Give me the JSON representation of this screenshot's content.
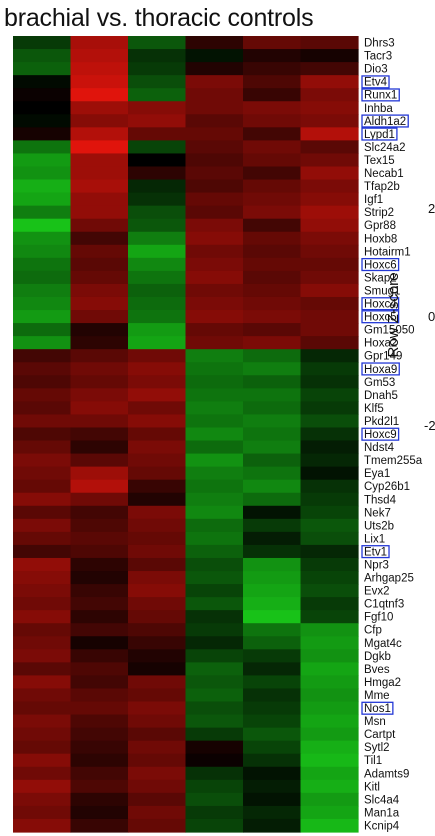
{
  "chart_data": {
    "type": "heatmap",
    "title": "brachial vs. thoracic controls",
    "color_scale_label": "Row Z-score",
    "color_scale_ticks": [
      "2",
      "0",
      "-2"
    ],
    "colors": {
      "high": "#e0140c",
      "mid": "#000000",
      "low": "#18c218",
      "box": "#2438d6"
    },
    "columns": 6,
    "genes": [
      {
        "name": "Dhrs3",
        "values": [
          -0.6,
          1.5,
          -0.9,
          0.4,
          0.9,
          0.8
        ]
      },
      {
        "name": "Tacr3",
        "values": [
          -0.9,
          1.6,
          -0.5,
          -0.2,
          0.3,
          0.2
        ]
      },
      {
        "name": "Dio3",
        "values": [
          -1.0,
          1.7,
          -0.6,
          0.3,
          0.5,
          0.6
        ]
      },
      {
        "name": "Etv4",
        "values": [
          -0.1,
          1.8,
          -0.8,
          1.1,
          0.7,
          1.3
        ]
      },
      {
        "name": "Runx1",
        "values": [
          0.1,
          2.0,
          -1.0,
          1.0,
          0.5,
          1.1
        ]
      },
      {
        "name": "Inhba",
        "values": [
          0.0,
          1.4,
          1.2,
          1.0,
          1.1,
          1.2
        ]
      },
      {
        "name": "Aldh1a2",
        "values": [
          -0.1,
          1.2,
          1.3,
          0.8,
          1.0,
          1.1
        ]
      },
      {
        "name": "Lypd1",
        "values": [
          0.2,
          1.6,
          0.9,
          0.9,
          0.6,
          1.6
        ]
      },
      {
        "name": "Slc24a2",
        "values": [
          -1.2,
          2.0,
          -0.7,
          0.8,
          1.0,
          0.8
        ]
      },
      {
        "name": "Tex15",
        "values": [
          -1.6,
          1.4,
          0.0,
          0.7,
          0.9,
          1.0
        ]
      },
      {
        "name": "Necab1",
        "values": [
          -1.5,
          1.4,
          0.4,
          0.8,
          0.6,
          1.3
        ]
      },
      {
        "name": "Tfap2b",
        "values": [
          -1.8,
          1.5,
          -0.4,
          0.7,
          0.9,
          1.1
        ]
      },
      {
        "name": "Igf1",
        "values": [
          -1.7,
          1.3,
          -0.5,
          0.9,
          1.0,
          1.2
        ]
      },
      {
        "name": "Strip2",
        "values": [
          -1.3,
          1.3,
          -0.8,
          0.8,
          1.1,
          1.4
        ]
      },
      {
        "name": "Gpr88",
        "values": [
          -2.0,
          1.0,
          -0.9,
          1.1,
          0.6,
          1.3
        ]
      },
      {
        "name": "Hoxb8",
        "values": [
          -1.5,
          0.6,
          -1.3,
          1.2,
          0.9,
          1.1
        ]
      },
      {
        "name": "Hotairm1",
        "values": [
          -1.4,
          0.9,
          -1.7,
          1.0,
          0.8,
          1.0
        ]
      },
      {
        "name": "Hoxc6",
        "values": [
          -1.2,
          0.8,
          -1.4,
          1.1,
          0.9,
          0.9
        ]
      },
      {
        "name": "Skap2",
        "values": [
          -1.1,
          0.9,
          -1.2,
          1.2,
          0.8,
          1.0
        ]
      },
      {
        "name": "Smug1",
        "values": [
          -1.3,
          1.1,
          -1.0,
          1.0,
          0.9,
          1.2
        ]
      },
      {
        "name": "Hoxc4",
        "values": [
          -1.4,
          1.2,
          -1.1,
          1.1,
          1.0,
          0.9
        ]
      },
      {
        "name": "Hoxc5",
        "values": [
          -1.6,
          1.0,
          -1.2,
          1.2,
          1.1,
          1.0
        ]
      },
      {
        "name": "Gm15050",
        "values": [
          -1.1,
          0.3,
          -1.6,
          0.9,
          0.8,
          1.0
        ]
      },
      {
        "name": "Hoxa2",
        "values": [
          -1.5,
          0.4,
          -1.7,
          1.0,
          1.1,
          0.8
        ]
      },
      {
        "name": "Gpr149",
        "values": [
          0.6,
          0.8,
          1.0,
          -1.3,
          -1.1,
          -0.4
        ]
      },
      {
        "name": "Hoxa9",
        "values": [
          0.8,
          1.0,
          1.2,
          -1.2,
          -1.3,
          -0.6
        ]
      },
      {
        "name": "Gm53",
        "values": [
          0.7,
          0.9,
          1.1,
          -1.1,
          -1.0,
          -0.5
        ]
      },
      {
        "name": "Dnah5",
        "values": [
          0.9,
          1.1,
          1.3,
          -1.2,
          -1.2,
          -0.7
        ]
      },
      {
        "name": "Klf5",
        "values": [
          0.8,
          1.2,
          1.0,
          -1.3,
          -1.1,
          -0.6
        ]
      },
      {
        "name": "Pkd2l1",
        "values": [
          1.0,
          1.0,
          1.2,
          -1.2,
          -1.3,
          -0.8
        ]
      },
      {
        "name": "Hoxc9",
        "values": [
          0.7,
          0.6,
          0.9,
          -1.4,
          -1.2,
          -0.5
        ]
      },
      {
        "name": "Ndst4",
        "values": [
          0.9,
          0.4,
          1.1,
          -1.1,
          -1.3,
          -0.3
        ]
      },
      {
        "name": "Tmem255a",
        "values": [
          1.1,
          0.8,
          1.0,
          -1.5,
          -1.0,
          -0.4
        ]
      },
      {
        "name": "Eya1",
        "values": [
          1.0,
          1.4,
          0.9,
          -1.3,
          -1.2,
          -0.2
        ]
      },
      {
        "name": "Cyp26b1",
        "values": [
          0.9,
          1.6,
          0.5,
          -1.2,
          -1.4,
          -0.5
        ]
      },
      {
        "name": "Thsd4",
        "values": [
          1.2,
          1.0,
          0.3,
          -1.3,
          -1.1,
          -0.6
        ]
      },
      {
        "name": "Nek7",
        "values": [
          0.8,
          0.6,
          1.1,
          -1.4,
          -0.2,
          -0.7
        ]
      },
      {
        "name": "Uts2b",
        "values": [
          1.1,
          0.7,
          1.0,
          -1.1,
          -0.6,
          -0.9
        ]
      },
      {
        "name": "Lix1",
        "values": [
          0.9,
          0.8,
          0.9,
          -1.2,
          -0.3,
          -0.8
        ]
      },
      {
        "name": "Etv1",
        "values": [
          0.6,
          0.7,
          1.0,
          -1.0,
          -0.5,
          -0.4
        ]
      },
      {
        "name": "Npr3",
        "values": [
          1.3,
          0.4,
          0.8,
          -0.8,
          -1.5,
          -0.6
        ]
      },
      {
        "name": "Arhgap25",
        "values": [
          1.2,
          0.3,
          1.1,
          -0.9,
          -1.6,
          -0.7
        ]
      },
      {
        "name": "Evx2",
        "values": [
          1.1,
          0.5,
          1.2,
          -0.7,
          -1.7,
          -0.8
        ]
      },
      {
        "name": "C1qtnf3",
        "values": [
          1.0,
          0.6,
          1.0,
          -0.9,
          -1.8,
          -0.6
        ]
      },
      {
        "name": "Fgf10",
        "values": [
          1.2,
          0.4,
          0.9,
          -0.5,
          -2.0,
          -0.7
        ]
      },
      {
        "name": "Cfp",
        "values": [
          0.9,
          0.6,
          0.7,
          -0.6,
          -1.2,
          -1.5
        ]
      },
      {
        "name": "Mgat4c",
        "values": [
          1.0,
          0.2,
          0.5,
          -0.4,
          -1.0,
          -1.6
        ]
      },
      {
        "name": "Dgkb",
        "values": [
          1.1,
          0.5,
          0.3,
          -0.7,
          -0.6,
          -1.5
        ]
      },
      {
        "name": "Bves",
        "values": [
          0.8,
          0.7,
          0.2,
          -1.0,
          -0.4,
          -1.7
        ]
      },
      {
        "name": "Hmga2",
        "values": [
          1.2,
          0.6,
          1.0,
          -0.9,
          -0.7,
          -1.6
        ]
      },
      {
        "name": "Mme",
        "values": [
          1.0,
          0.8,
          0.9,
          -1.0,
          -0.5,
          -1.5
        ]
      },
      {
        "name": "Nos1",
        "values": [
          0.9,
          0.9,
          1.1,
          -0.8,
          -0.6,
          -1.6
        ]
      },
      {
        "name": "Msn",
        "values": [
          1.1,
          0.7,
          1.0,
          -0.9,
          -0.7,
          -1.7
        ]
      },
      {
        "name": "Cartpt",
        "values": [
          1.0,
          0.6,
          0.8,
          -0.6,
          -0.9,
          -1.6
        ]
      },
      {
        "name": "Sytl2",
        "values": [
          0.9,
          0.5,
          1.0,
          0.2,
          -0.7,
          -1.8
        ]
      },
      {
        "name": "Til1",
        "values": [
          1.2,
          0.4,
          0.9,
          0.1,
          -0.5,
          -1.9
        ]
      },
      {
        "name": "Adamts9",
        "values": [
          1.0,
          0.6,
          1.1,
          -0.5,
          -0.2,
          -1.7
        ]
      },
      {
        "name": "Kitl",
        "values": [
          1.3,
          0.7,
          1.0,
          -0.7,
          -0.3,
          -1.8
        ]
      },
      {
        "name": "Slc4a4",
        "values": [
          1.1,
          0.4,
          0.8,
          -0.8,
          -0.2,
          -1.6
        ]
      },
      {
        "name": "Man1a",
        "values": [
          1.0,
          0.3,
          1.0,
          -0.6,
          -0.4,
          -1.7
        ]
      },
      {
        "name": "Kcnip4",
        "values": [
          1.2,
          0.5,
          0.9,
          -0.7,
          -0.3,
          -1.9
        ]
      }
    ],
    "highlighted_genes": [
      "Etv4",
      "Runx1",
      "Aldh1a2",
      "Lypd1",
      "Hoxc6",
      "Hoxc4",
      "Hoxc5",
      "Hoxa9",
      "Hoxc9",
      "Etv1",
      "Nos1"
    ]
  }
}
